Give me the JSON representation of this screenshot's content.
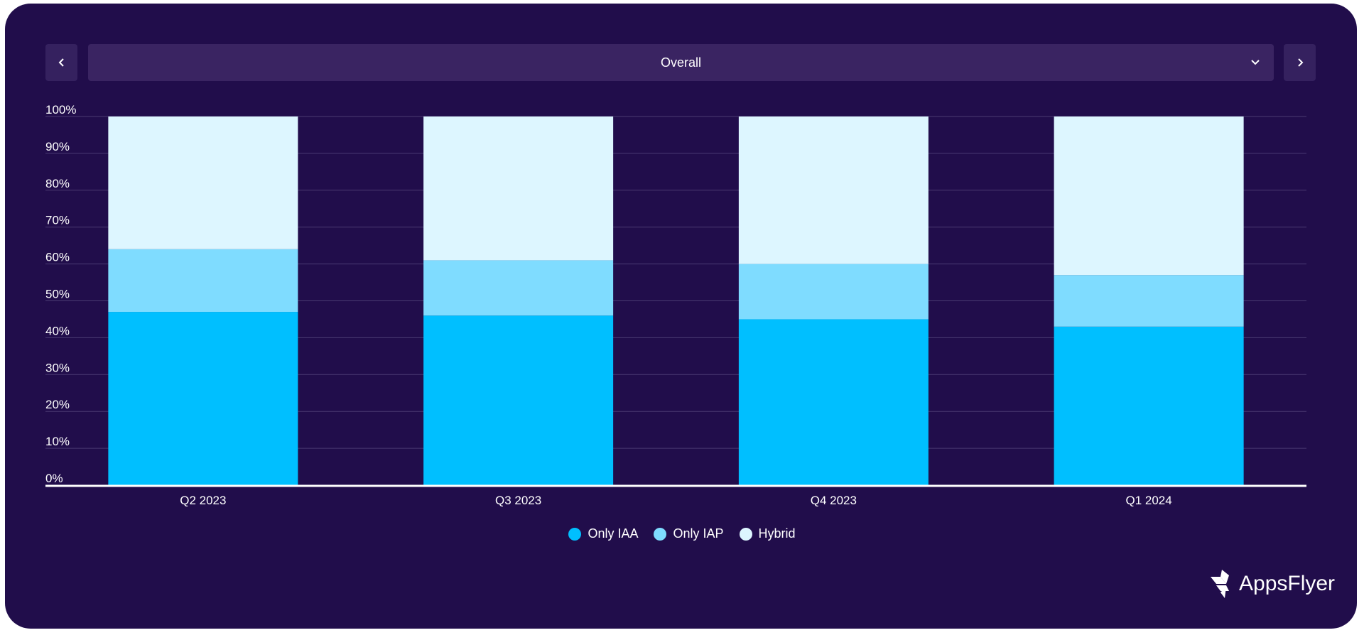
{
  "selector": {
    "value": "Overall",
    "prev_icon": "chevron-left-icon",
    "next_icon": "chevron-right-icon",
    "dropdown_icon": "chevron-down-icon"
  },
  "brand": {
    "logo_text": "AppsFlyer"
  },
  "colors": {
    "background": "#210d4b",
    "Only IAA": "#00bfff",
    "Only IAP": "#7fdcff",
    "Hybrid": "#ddf6ff",
    "grid": "#4a3a72",
    "axis": "#ffffff"
  },
  "chart_data": {
    "type": "bar",
    "stacked": true,
    "categories": [
      "Q2 2023",
      "Q3 2023",
      "Q4 2023",
      "Q1 2024"
    ],
    "series": [
      {
        "name": "Only IAA",
        "values": [
          47,
          46,
          45,
          43
        ]
      },
      {
        "name": "Only IAP",
        "values": [
          17,
          15,
          15,
          14
        ]
      },
      {
        "name": "Hybrid",
        "values": [
          36,
          39,
          40,
          43
        ]
      }
    ],
    "ylim": [
      0,
      100
    ],
    "yticks": [
      "0%",
      "10%",
      "20%",
      "30%",
      "40%",
      "50%",
      "60%",
      "70%",
      "80%",
      "90%",
      "100%"
    ],
    "grid": true,
    "legend": "bottom-center"
  }
}
